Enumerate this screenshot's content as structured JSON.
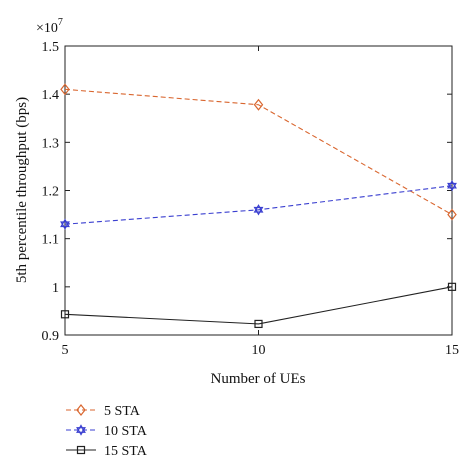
{
  "chart_data": {
    "type": "line",
    "title": "",
    "xlabel": "Number of UEs",
    "ylabel": "5th percentile throughput (bps)",
    "y_multiplier_label": "×10",
    "y_multiplier_exponent": "7",
    "x": [
      5,
      10,
      15
    ],
    "x_ticks": [
      "5",
      "10",
      "15"
    ],
    "xlim": [
      5,
      15
    ],
    "ylim": [
      0.9,
      1.5
    ],
    "y_ticks": [
      0.9,
      1.0,
      1.1,
      1.2,
      1.3,
      1.4,
      1.5
    ],
    "y_tick_labels": [
      "0.9",
      "1",
      "1.1",
      "1.2",
      "1.3",
      "1.4",
      "1.5"
    ],
    "grid": false,
    "legend_position": "below",
    "series": [
      {
        "name": "5 STA",
        "values": [
          1.41,
          1.378,
          1.15
        ],
        "color": "#d9662f",
        "dash": "dashed",
        "marker": "diamond"
      },
      {
        "name": "10 STA",
        "values": [
          1.13,
          1.16,
          1.21
        ],
        "color": "#3a3fd0",
        "dash": "dashed",
        "marker": "star"
      },
      {
        "name": "15 STA",
        "values": [
          0.943,
          0.923,
          1.0
        ],
        "color": "#222222",
        "dash": "solid",
        "marker": "square"
      }
    ]
  }
}
